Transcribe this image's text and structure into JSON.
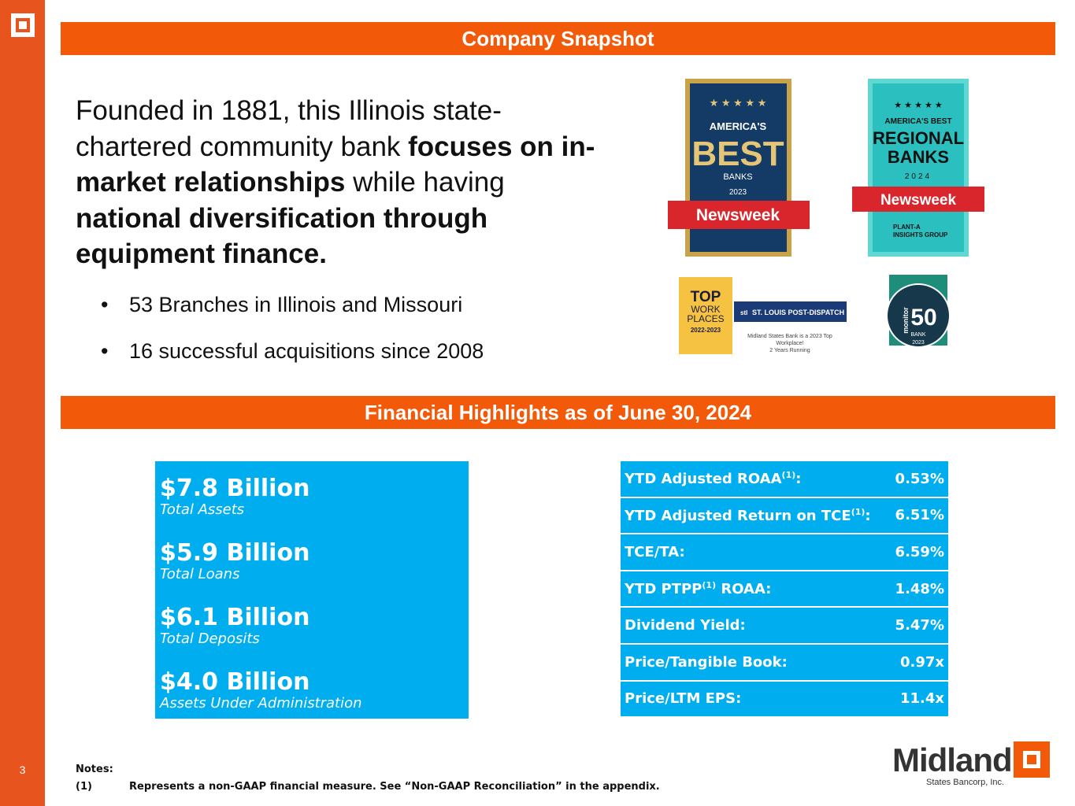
{
  "page_number": "3",
  "snapshot_title": "Company Snapshot",
  "highlights_title": "Financial Highlights as of June 30, 2024",
  "intro": [
    {
      "text": "Founded in 1881, this Illinois state-chartered community bank ",
      "bold": false
    },
    {
      "text": "focuses on in-market relationships",
      "bold": true
    },
    {
      "text": " while having ",
      "bold": false
    },
    {
      "text": "national diversification through equipment finance.",
      "bold": true
    }
  ],
  "bullets": [
    "53 Branches in Illinois and Missouri",
    "16 successful acquisitions since 2008"
  ],
  "badges": {
    "best_banks": {
      "line1": "AMERICA'S",
      "line2": "BEST",
      "line3": "BANKS",
      "year": "2023",
      "ribbon": "Newsweek"
    },
    "regional_banks": {
      "line1": "AMERICA'S BEST",
      "line2": "REGIONAL",
      "line3": "BANKS",
      "year": "2024",
      "ribbon": "Newsweek",
      "partner1": "PLANT-A",
      "partner2": "INSIGHTS GROUP"
    },
    "top_workplaces": {
      "line1": "TOP",
      "line2": "WORK",
      "line3": "PLACES",
      "years": "2022-2023",
      "paper_logo": "stl",
      "paper": "ST. LOUIS POST-DISPATCH",
      "caption1": "Midland States Bank is a 2023 Top",
      "caption2": "Workplace!",
      "caption3": "2 Years Running"
    },
    "monitor": {
      "brand": "monitor",
      "number": "50",
      "kind": "BANK",
      "year": "2023"
    }
  },
  "key_figures": [
    {
      "amount": "$7.8 Billion",
      "label": "Total Assets"
    },
    {
      "amount": "$5.9 Billion",
      "label": "Total Loans"
    },
    {
      "amount": "$6.1 Billion",
      "label": "Total Deposits"
    },
    {
      "amount": "$4.0 Billion",
      "label": "Assets Under Administration"
    }
  ],
  "metrics": [
    {
      "label": "YTD Adjusted ROAA",
      "note": "(1)",
      "label_end": ":",
      "value": "0.53%"
    },
    {
      "label": "YTD Adjusted Return on TCE",
      "note": "(1)",
      "label_end": ":",
      "value": "6.51%"
    },
    {
      "label": "TCE/TA:",
      "value": "6.59%"
    },
    {
      "label": "YTD PTPP",
      "note": "(1)",
      "label_end": " ROAA:",
      "value": "1.48%"
    },
    {
      "label": "Dividend Yield:",
      "value": "5.47%"
    },
    {
      "label": "Price/Tangible Book:",
      "value": "0.97x"
    },
    {
      "label": "Price/LTM EPS:",
      "value": "11.4x"
    }
  ],
  "notes": {
    "heading": "Notes:",
    "items": [
      {
        "marker": "(1)",
        "text": "Represents a non-GAAP financial measure. See “Non-GAAP Reconciliation” in the appendix."
      }
    ]
  },
  "logo": {
    "name": "Midland",
    "subtitle": "States Bancorp, Inc."
  }
}
